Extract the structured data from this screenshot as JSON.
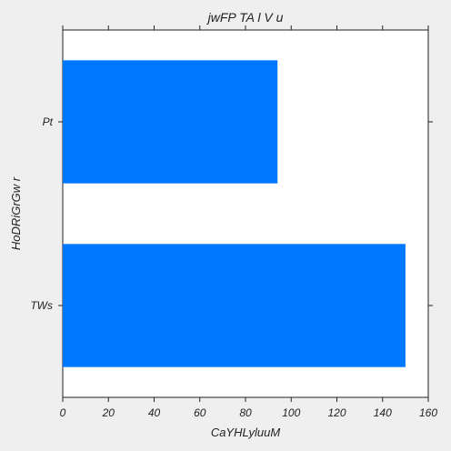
{
  "chart_data": {
    "type": "bar",
    "orientation": "horizontal",
    "title": "jwFP TA l V u",
    "xlabel": "CaYHLyluuM",
    "ylabel": "HoDRiGrGw r",
    "categories": [
      "TWs",
      "Pt"
    ],
    "values": [
      150,
      94
    ],
    "xlim": [
      0,
      160
    ],
    "xticks": [
      0,
      20,
      40,
      60,
      80,
      100,
      120,
      140,
      160
    ],
    "grid": false,
    "legend": "none",
    "bar_color": "#0077ff",
    "background": "#efefef",
    "plot_background": "#ffffff"
  }
}
